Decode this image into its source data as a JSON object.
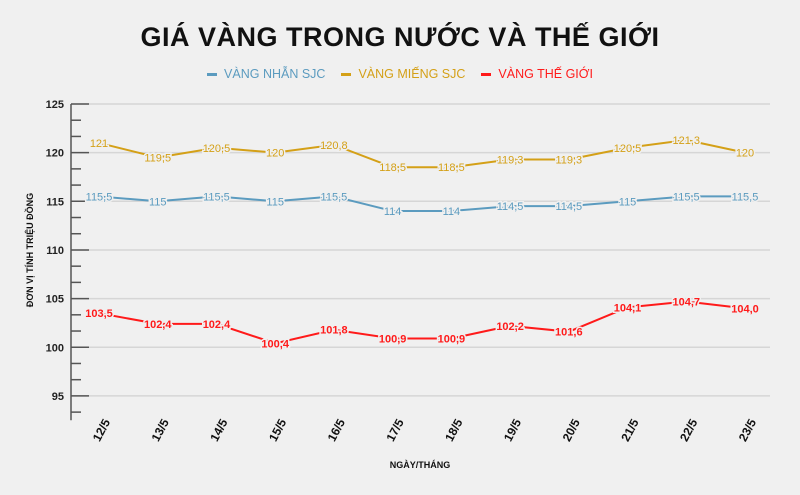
{
  "chart_data": {
    "type": "line",
    "title": "GIÁ VÀNG TRONG NƯỚC VÀ THẾ GIỚI",
    "xlabel": "NGÀY/THÁNG",
    "ylabel": "ĐƠN VỊ TÍNH TRIỆU ĐỒNG",
    "ylim": [
      92.5,
      125
    ],
    "yticks": [
      95,
      100,
      105,
      110,
      115,
      120,
      125
    ],
    "grid": true,
    "legend_position": "top",
    "categories": [
      "12/5",
      "13/5",
      "14/5",
      "15/5",
      "16/5",
      "17/5",
      "18/5",
      "19/5",
      "20/5",
      "21/5",
      "22/5",
      "23/5"
    ],
    "series": [
      {
        "name": "VÀNG NHẪN SJC",
        "color": "#5b9bbf",
        "values": [
          115.5,
          115,
          115.5,
          115,
          115.5,
          114,
          114,
          114.5,
          114.5,
          115,
          115.5,
          115.5
        ],
        "labels": [
          "115,5",
          "115",
          "115,5",
          "115",
          "115,5",
          "114",
          "114",
          "114,5",
          "114,5",
          "115",
          "115,5",
          "115,5"
        ]
      },
      {
        "name": "VÀNG MIẾNG SJC",
        "color": "#d4a017",
        "values": [
          121,
          119.5,
          120.5,
          120,
          120.8,
          118.5,
          118.5,
          119.3,
          119.3,
          120.5,
          121.3,
          120
        ],
        "labels": [
          "121",
          "119,5",
          "120,5",
          "120",
          "120,8",
          "118,5",
          "118,5",
          "119,3",
          "119,3",
          "120,5",
          "121,3",
          "120"
        ]
      },
      {
        "name": "VÀNG THẾ GIỚI",
        "color": "#ff1a1a",
        "values": [
          103.5,
          102.4,
          102.4,
          100.4,
          101.8,
          100.9,
          100.9,
          102.2,
          101.6,
          104.1,
          104.7,
          104.0
        ],
        "labels": [
          "103,5",
          "102,4",
          "102,4",
          "100,4",
          "101,8",
          "100,9",
          "100,9",
          "102,2",
          "101,6",
          "104,1",
          "104,7",
          "104,0"
        ]
      }
    ]
  }
}
